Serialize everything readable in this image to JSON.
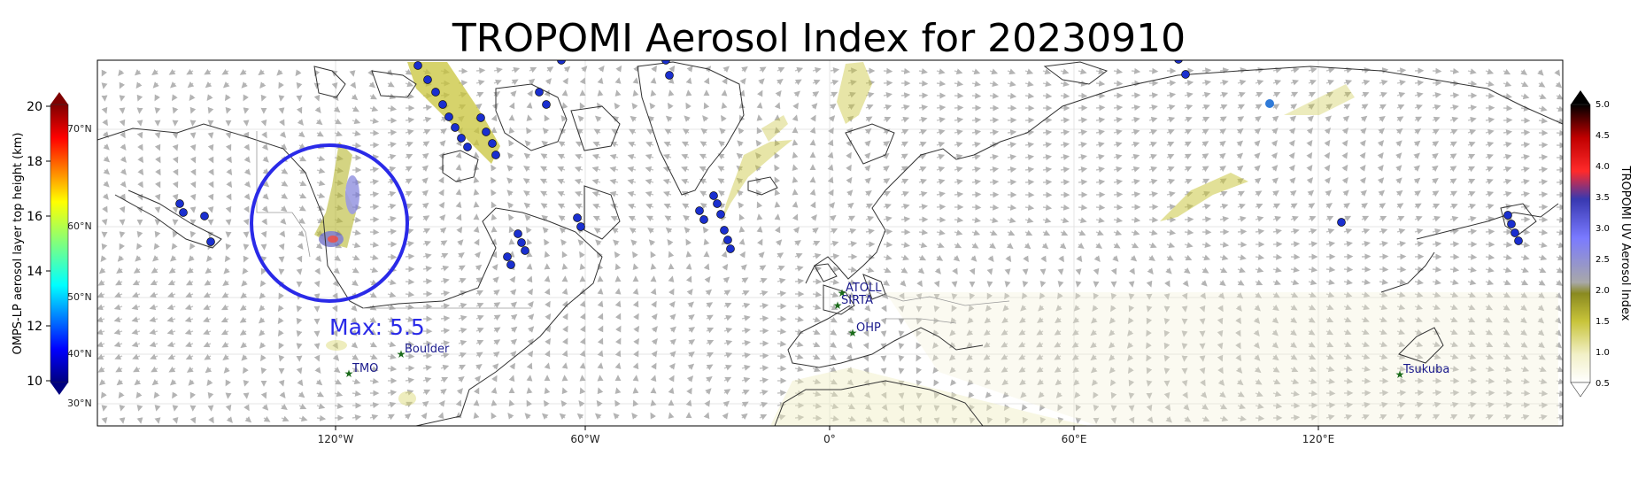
{
  "title": "TROPOMI Aerosol Index for 20230910",
  "left_colorbar": {
    "label": "OMPS-LP aerosol layer top height (km)",
    "ticks": [
      "20",
      "18",
      "16",
      "14",
      "12",
      "10"
    ],
    "range_km": [
      10,
      20
    ]
  },
  "right_colorbar": {
    "label": "TROPOMI UV Aerosol Index",
    "ticks": [
      "5.0",
      "4.5",
      "4.0",
      "3.5",
      "3.0",
      "2.5",
      "2.0",
      "1.5",
      "1.0",
      "0.5"
    ],
    "range": [
      0.5,
      5.0
    ]
  },
  "latitude_labels": [
    "70°N",
    "60°N",
    "50°N",
    "40°N",
    "30°N"
  ],
  "longitude_labels": [
    "120°W",
    "60°W",
    "0°",
    "60°E",
    "120°E"
  ],
  "max_annotation": "Max: 5.5",
  "stations": [
    {
      "name": "ATOLL"
    },
    {
      "name": "SIRTA"
    },
    {
      "name": "OHP"
    },
    {
      "name": "Boulder"
    },
    {
      "name": "TMO"
    },
    {
      "name": "Tsukuba"
    }
  ],
  "colors": {
    "circle": "#2a2ae8",
    "station_marker": "#1a6b1a",
    "station_text": "#1a1a8c",
    "omps_point": "#1a2fcf",
    "aerosol": "#c8c43a",
    "coastline": "#333333",
    "wind_arrow": "#b4b4b4"
  }
}
